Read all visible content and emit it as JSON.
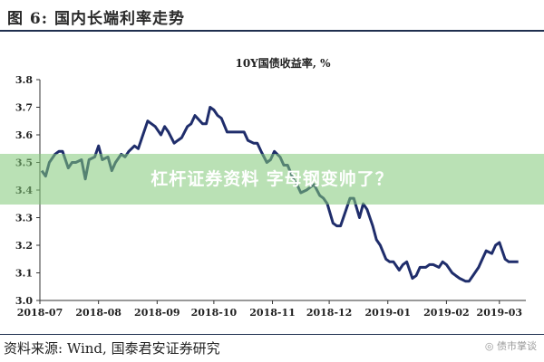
{
  "figure": {
    "title": "图 6:  国内长端利率走势",
    "source": "资料来源:  Wind,  国泰君安证券研究",
    "logo_text": "债市掌谈"
  },
  "banner": {
    "text": "杠杆证券资料 字母钢变帅了？"
  },
  "colors": {
    "line": "#1f2d6b",
    "rule": "#1f2f4f",
    "banner": "#82c878"
  },
  "chart_data": {
    "type": "line",
    "title": "10Y国债收益率,  %",
    "xlabel": "",
    "ylabel": "",
    "ylim": [
      3.0,
      3.8
    ],
    "yticks": [
      "3.0",
      "3.1",
      "3.2",
      "3.3",
      "3.4",
      "3.5",
      "3.6",
      "3.7",
      "3.8"
    ],
    "xticks": [
      "2018-07",
      "2018-08",
      "2018-09",
      "2018-10",
      "2018-11",
      "2018-12",
      "2019-01",
      "2019-02",
      "2019-03"
    ],
    "grid": false,
    "series": [
      {
        "name": "",
        "points": [
          [
            "2018-07-02",
            3.47
          ],
          [
            "2018-07-04",
            3.45
          ],
          [
            "2018-07-06",
            3.5
          ],
          [
            "2018-07-09",
            3.53
          ],
          [
            "2018-07-11",
            3.54
          ],
          [
            "2018-07-13",
            3.54
          ],
          [
            "2018-07-16",
            3.48
          ],
          [
            "2018-07-18",
            3.5
          ],
          [
            "2018-07-20",
            3.5
          ],
          [
            "2018-07-23",
            3.51
          ],
          [
            "2018-07-25",
            3.44
          ],
          [
            "2018-07-27",
            3.51
          ],
          [
            "2018-07-30",
            3.52
          ],
          [
            "2018-08-01",
            3.56
          ],
          [
            "2018-08-03",
            3.51
          ],
          [
            "2018-08-06",
            3.52
          ],
          [
            "2018-08-08",
            3.47
          ],
          [
            "2018-08-10",
            3.5
          ],
          [
            "2018-08-13",
            3.53
          ],
          [
            "2018-08-15",
            3.52
          ],
          [
            "2018-08-17",
            3.54
          ],
          [
            "2018-08-20",
            3.56
          ],
          [
            "2018-08-22",
            3.55
          ],
          [
            "2018-08-24",
            3.59
          ],
          [
            "2018-08-27",
            3.65
          ],
          [
            "2018-08-29",
            3.64
          ],
          [
            "2018-08-31",
            3.63
          ],
          [
            "2018-09-03",
            3.6
          ],
          [
            "2018-09-05",
            3.63
          ],
          [
            "2018-09-07",
            3.61
          ],
          [
            "2018-09-10",
            3.57
          ],
          [
            "2018-09-12",
            3.58
          ],
          [
            "2018-09-14",
            3.59
          ],
          [
            "2018-09-17",
            3.63
          ],
          [
            "2018-09-19",
            3.64
          ],
          [
            "2018-09-21",
            3.67
          ],
          [
            "2018-09-25",
            3.64
          ],
          [
            "2018-09-27",
            3.64
          ],
          [
            "2018-09-29",
            3.7
          ],
          [
            "2018-10-01",
            3.69
          ],
          [
            "2018-10-03",
            3.67
          ],
          [
            "2018-10-05",
            3.66
          ],
          [
            "2018-10-08",
            3.61
          ],
          [
            "2018-10-10",
            3.61
          ],
          [
            "2018-10-12",
            3.61
          ],
          [
            "2018-10-15",
            3.61
          ],
          [
            "2018-10-17",
            3.61
          ],
          [
            "2018-10-19",
            3.58
          ],
          [
            "2018-10-22",
            3.57
          ],
          [
            "2018-10-24",
            3.57
          ],
          [
            "2018-10-26",
            3.54
          ],
          [
            "2018-10-29",
            3.5
          ],
          [
            "2018-10-31",
            3.51
          ],
          [
            "2018-11-02",
            3.54
          ],
          [
            "2018-11-05",
            3.52
          ],
          [
            "2018-11-07",
            3.49
          ],
          [
            "2018-11-09",
            3.49
          ],
          [
            "2018-11-12",
            3.44
          ],
          [
            "2018-11-14",
            3.42
          ],
          [
            "2018-11-16",
            3.39
          ],
          [
            "2018-11-19",
            3.4
          ],
          [
            "2018-11-21",
            3.41
          ],
          [
            "2018-11-23",
            3.42
          ],
          [
            "2018-11-26",
            3.38
          ],
          [
            "2018-11-28",
            3.37
          ],
          [
            "2018-11-30",
            3.35
          ],
          [
            "2018-12-03",
            3.28
          ],
          [
            "2018-12-05",
            3.27
          ],
          [
            "2018-12-07",
            3.27
          ],
          [
            "2018-12-10",
            3.33
          ],
          [
            "2018-12-12",
            3.37
          ],
          [
            "2018-12-14",
            3.37
          ],
          [
            "2018-12-17",
            3.3
          ],
          [
            "2018-12-19",
            3.35
          ],
          [
            "2018-12-21",
            3.33
          ],
          [
            "2018-12-24",
            3.27
          ],
          [
            "2018-12-26",
            3.22
          ],
          [
            "2018-12-28",
            3.2
          ],
          [
            "2018-12-31",
            3.15
          ],
          [
            "2019-01-02",
            3.14
          ],
          [
            "2019-01-04",
            3.14
          ],
          [
            "2019-01-07",
            3.11
          ],
          [
            "2019-01-09",
            3.13
          ],
          [
            "2019-01-11",
            3.14
          ],
          [
            "2019-01-14",
            3.08
          ],
          [
            "2019-01-16",
            3.09
          ],
          [
            "2019-01-18",
            3.12
          ],
          [
            "2019-01-21",
            3.12
          ],
          [
            "2019-01-23",
            3.13
          ],
          [
            "2019-01-25",
            3.13
          ],
          [
            "2019-01-28",
            3.12
          ],
          [
            "2019-01-30",
            3.14
          ],
          [
            "2019-02-01",
            3.13
          ],
          [
            "2019-02-04",
            3.1
          ],
          [
            "2019-02-06",
            3.09
          ],
          [
            "2019-02-08",
            3.08
          ],
          [
            "2019-02-11",
            3.07
          ],
          [
            "2019-02-13",
            3.07
          ],
          [
            "2019-02-15",
            3.09
          ],
          [
            "2019-02-18",
            3.12
          ],
          [
            "2019-02-20",
            3.15
          ],
          [
            "2019-02-22",
            3.18
          ],
          [
            "2019-02-25",
            3.17
          ],
          [
            "2019-02-27",
            3.2
          ],
          [
            "2019-03-01",
            3.21
          ],
          [
            "2019-03-04",
            3.15
          ],
          [
            "2019-03-06",
            3.14
          ],
          [
            "2019-03-08",
            3.14
          ],
          [
            "2019-03-11",
            3.14
          ]
        ]
      }
    ]
  }
}
